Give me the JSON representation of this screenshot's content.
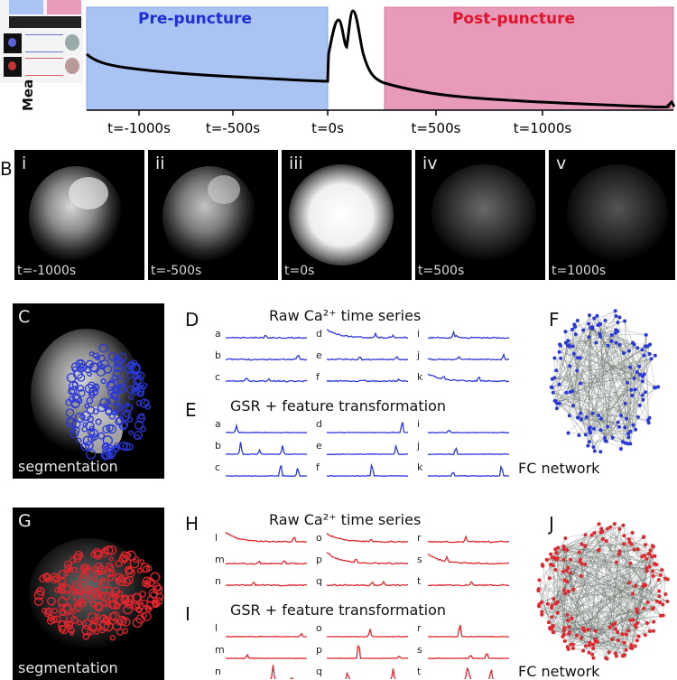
{
  "panelA": {
    "pre_label": "Pre-puncture",
    "post_label": "Post-puncture",
    "ylabel_fragment": "Mea",
    "pre_color": "#a9c3f2",
    "post_color": "#e79ab9",
    "pre_text_color": "#1f2fd6",
    "post_text_color": "#e0142a",
    "ticks": [
      "t=-1000s",
      "t=-500s",
      "t=0s",
      "t=500s",
      "t=1000s"
    ]
  },
  "panelB": {
    "letter": "B",
    "frames": [
      {
        "roman": "i",
        "time": "t=-1000s"
      },
      {
        "roman": "ii",
        "time": "t=-500s"
      },
      {
        "roman": "iii",
        "time": "t=0s"
      },
      {
        "roman": "iv",
        "time": "t=500s"
      },
      {
        "roman": "v",
        "time": "t=1000s"
      }
    ]
  },
  "pre": {
    "seg_letter": "C",
    "seg_label": "segmentation",
    "raw_letter": "D",
    "raw_title": "Raw Ca²⁺ time series",
    "gsr_letter": "E",
    "gsr_title": "GSR + feature transformation",
    "net_letter": "F",
    "net_label": "FC network",
    "color": "#2b38d9",
    "raw_traces": [
      "a",
      "b",
      "c",
      "d",
      "e",
      "f",
      "i",
      "j",
      "k"
    ],
    "gsr_traces": [
      "a",
      "b",
      "c",
      "d",
      "e",
      "f",
      "i",
      "j",
      "k"
    ]
  },
  "post": {
    "seg_letter": "G",
    "seg_label": "segmentation",
    "raw_letter": "H",
    "raw_title": "Raw Ca²⁺ time series",
    "gsr_letter": "I",
    "gsr_title": "GSR + feature transformation",
    "net_letter": "J",
    "net_label": "FC network",
    "color": "#e0262e",
    "raw_traces": [
      "l",
      "m",
      "n",
      "o",
      "p",
      "q",
      "r",
      "s",
      "t"
    ],
    "gsr_traces": [
      "l",
      "m",
      "n",
      "o",
      "p",
      "q",
      "r",
      "s",
      "t"
    ]
  }
}
